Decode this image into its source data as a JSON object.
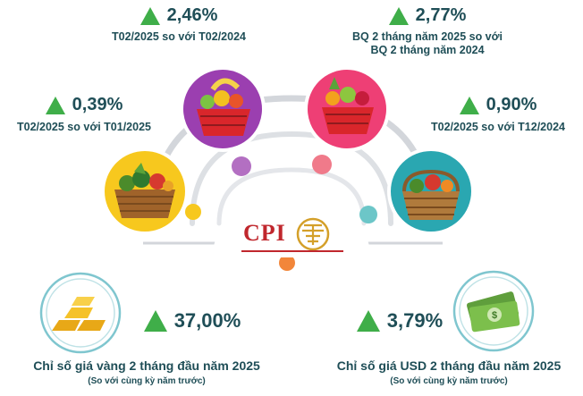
{
  "chart_data": {
    "type": "table",
    "title": "",
    "series": [
      {
        "label_lines": [
          "T02/2025 so với T02/2024"
        ],
        "value": 2.46,
        "value_text": "2,46%",
        "direction": "up"
      },
      {
        "label_lines": [
          "BQ 2 tháng năm 2025 so với",
          "BQ 2 tháng năm 2024"
        ],
        "value": 2.77,
        "value_text": "2,77%",
        "direction": "up"
      },
      {
        "label_lines": [
          "T02/2025 so với T01/2025"
        ],
        "value": 0.39,
        "value_text": "0,39%",
        "direction": "up"
      },
      {
        "label_lines": [
          "T02/2025 so với T12/2024"
        ],
        "value": 0.9,
        "value_text": "0,90%",
        "direction": "up"
      }
    ],
    "indexes": [
      {
        "label": "Chỉ số giá vàng 2 tháng đầu năm 2025",
        "note": "(So với cùng kỳ năm trước)",
        "value": 37.0,
        "value_text": "37,00%",
        "direction": "up"
      },
      {
        "label": "Chỉ số giá USD 2 tháng đầu năm 2025",
        "note": "(So với cùng kỳ năm trước)",
        "value": 3.79,
        "value_text": "3,79%",
        "direction": "up"
      }
    ],
    "center_label": "CPI"
  },
  "colors": {
    "up_arrow": "#3fae49",
    "text": "#1f4e57",
    "cpi_red": "#c0272d",
    "arc": "#c9cdd3",
    "dot_purple": "#b36fc2",
    "dot_pink": "#f07a8a",
    "dot_teal": "#6cc6c8",
    "dot_orange": "#f2863a",
    "circle_yellow": "#f7c81e",
    "circle_purple": "#9b3fb0",
    "circle_pink": "#ee3f75",
    "circle_teal": "#2aa7b1"
  },
  "icons": [
    "vegetable-basket-icon",
    "fruit-basket-icon",
    "red-fruit-basket-icon",
    "vegetable-wicker-basket-icon",
    "gold-bars-icon",
    "dollar-bills-icon",
    "hanoi-emblem-icon"
  ]
}
